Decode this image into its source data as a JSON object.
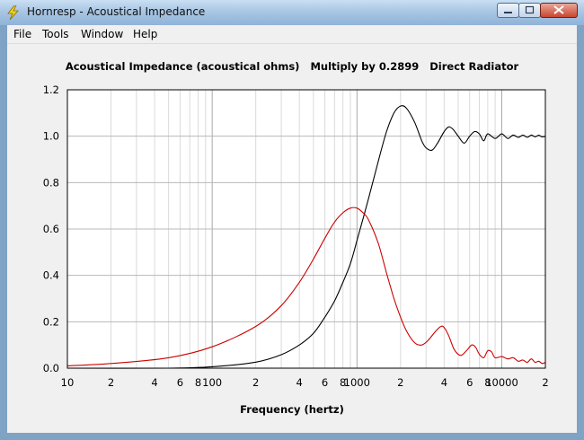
{
  "window": {
    "title": "Hornresp - Acoustical Impedance",
    "icon": "lightning-bolt-icon",
    "controls": [
      "minimize-icon",
      "maximize-icon",
      "close-icon"
    ]
  },
  "menu": [
    {
      "label": "File"
    },
    {
      "label": "Tools"
    },
    {
      "label": "Window"
    },
    {
      "label": "Help"
    }
  ],
  "chart_data": {
    "type": "line",
    "title": "Acoustical Impedance (acoustical ohms)   Multiply by 0.2899   Direct Radiator",
    "xlabel": "Frequency (hertz)",
    "ylabel": "",
    "x_scale": "log",
    "xlim": [
      10,
      20000
    ],
    "ylim": [
      0,
      1.2
    ],
    "grid": true,
    "y_ticks": [
      "0.0",
      "0.2",
      "0.4",
      "0.6",
      "0.8",
      "1.0",
      "1.2"
    ],
    "x_ticks": [
      {
        "value": 10,
        "label": "10"
      },
      {
        "value": 20,
        "label": "2"
      },
      {
        "value": 40,
        "label": "4"
      },
      {
        "value": 60,
        "label": "6"
      },
      {
        "value": 80,
        "label": "8"
      },
      {
        "value": 100,
        "label": "100"
      },
      {
        "value": 200,
        "label": "2"
      },
      {
        "value": 400,
        "label": "4"
      },
      {
        "value": 600,
        "label": "6"
      },
      {
        "value": 800,
        "label": "8"
      },
      {
        "value": 1000,
        "label": "1000"
      },
      {
        "value": 2000,
        "label": "2"
      },
      {
        "value": 4000,
        "label": "4"
      },
      {
        "value": 6000,
        "label": "6"
      },
      {
        "value": 8000,
        "label": "8"
      },
      {
        "value": 10000,
        "label": "10000"
      },
      {
        "value": 20000,
        "label": "2"
      }
    ],
    "series": [
      {
        "color": "#000000",
        "role": "resistance",
        "x": [
          10,
          50,
          100,
          200,
          300,
          400,
          500,
          600,
          700,
          800,
          900,
          1000,
          1200,
          1400,
          1600,
          1800,
          2000,
          2200,
          2500,
          2800,
          3000,
          3300,
          3600,
          4000,
          4300,
          4600,
          5000,
          5500,
          6000,
          6500,
          7000,
          7500,
          8000,
          9000,
          10000,
          11000,
          12000,
          13000,
          14000,
          15000,
          16000,
          17000,
          18000,
          19000,
          20000
        ],
        "y": [
          0.0,
          0.0,
          0.006,
          0.026,
          0.058,
          0.1,
          0.15,
          0.22,
          0.29,
          0.37,
          0.45,
          0.55,
          0.73,
          0.89,
          1.02,
          1.1,
          1.13,
          1.12,
          1.06,
          0.98,
          0.95,
          0.94,
          0.97,
          1.02,
          1.04,
          1.03,
          1.0,
          0.97,
          1.0,
          1.02,
          1.01,
          0.98,
          1.01,
          0.99,
          1.01,
          0.99,
          1.005,
          0.995,
          1.005,
          0.995,
          1.005,
          0.997,
          1.004,
          0.997,
          1.0
        ]
      },
      {
        "color": "#cc0000",
        "role": "reactance",
        "x": [
          10,
          20,
          50,
          100,
          200,
          300,
          400,
          500,
          600,
          700,
          800,
          900,
          1000,
          1100,
          1200,
          1400,
          1600,
          1800,
          2000,
          2200,
          2500,
          2800,
          3100,
          3500,
          3800,
          4000,
          4300,
          4700,
          5200,
          5700,
          6200,
          6600,
          7000,
          7500,
          8000,
          8500,
          9000,
          10000,
          11000,
          12000,
          13000,
          14000,
          15000,
          16000,
          17000,
          18000,
          19000,
          20000
        ],
        "y": [
          0.01,
          0.02,
          0.045,
          0.092,
          0.18,
          0.27,
          0.37,
          0.47,
          0.56,
          0.63,
          0.67,
          0.69,
          0.69,
          0.67,
          0.64,
          0.54,
          0.41,
          0.3,
          0.22,
          0.16,
          0.11,
          0.1,
          0.12,
          0.16,
          0.18,
          0.175,
          0.14,
          0.08,
          0.055,
          0.075,
          0.1,
          0.09,
          0.06,
          0.045,
          0.075,
          0.07,
          0.045,
          0.05,
          0.04,
          0.045,
          0.03,
          0.035,
          0.025,
          0.04,
          0.025,
          0.03,
          0.02,
          0.025
        ]
      }
    ]
  }
}
